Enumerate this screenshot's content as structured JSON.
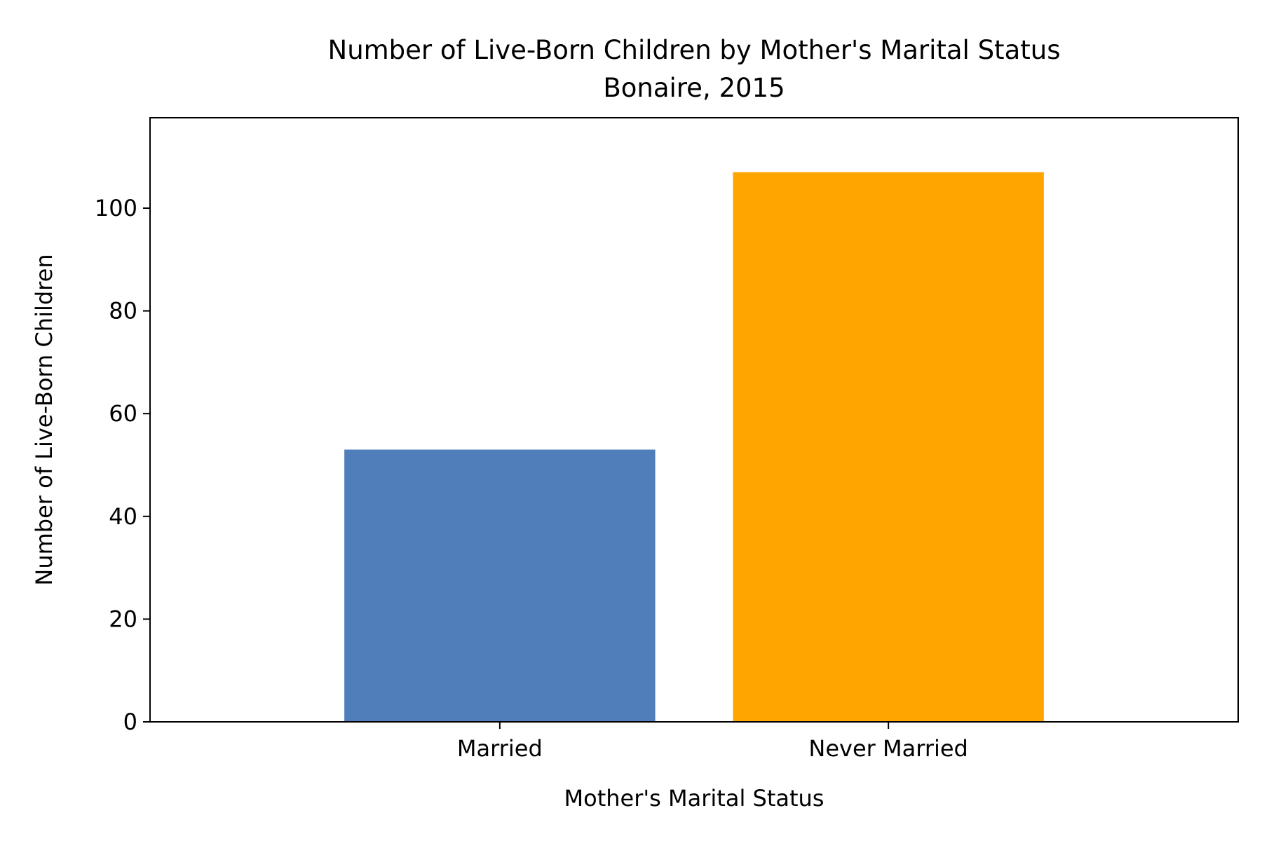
{
  "chart_data": {
    "type": "bar",
    "title": "Number of Live-Born Children by Mother's Marital Status",
    "subtitle": "Bonaire, 2015",
    "xlabel": "Mother's Marital Status",
    "ylabel": "Number of Live-Born Children",
    "categories": [
      "Married",
      "Never Married"
    ],
    "values": [
      53,
      107
    ],
    "colors": [
      "#4f7ebb",
      "#ffa500"
    ],
    "ylim": [
      0,
      117.6
    ],
    "yticks": [
      0,
      20,
      40,
      60,
      80,
      100
    ],
    "grid": false
  }
}
